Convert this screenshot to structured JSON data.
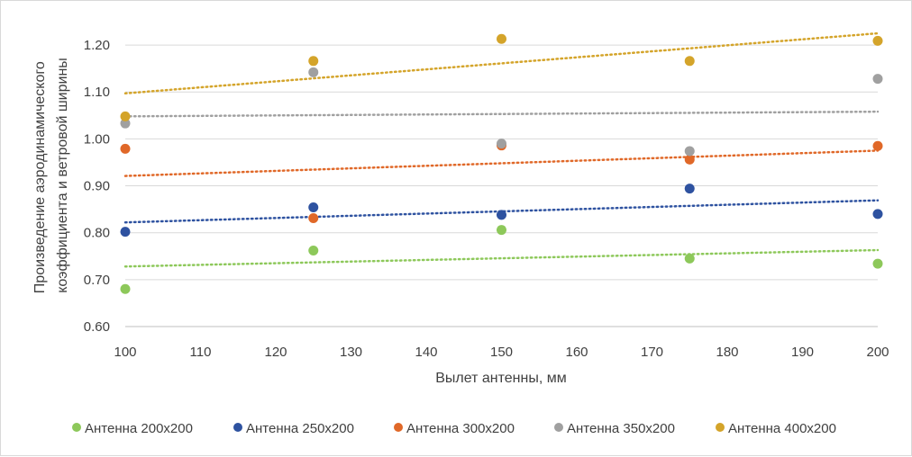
{
  "chart_data": {
    "type": "scatter",
    "title": "",
    "xlabel": "Вылет антенны, мм",
    "ylabel_lines": [
      "Произведение аэродинамического",
      "коэффициента и ветровой ширины"
    ],
    "xlim": [
      100,
      200
    ],
    "ylim": [
      0.6,
      1.25
    ],
    "x_ticks": [
      100,
      110,
      120,
      130,
      140,
      150,
      160,
      170,
      180,
      190,
      200
    ],
    "y_ticks": [
      0.6,
      0.7,
      0.8,
      0.9,
      1.0,
      1.1,
      1.2
    ],
    "y_tick_labels": [
      "0.60",
      "0.70",
      "0.80",
      "0.90",
      "1.00",
      "1.10",
      "1.20"
    ],
    "grid": "horizontal",
    "legend_position": "bottom",
    "trendline": "linear, dotted",
    "series": [
      {
        "name": "Антенна 200x200",
        "color": "#8dc85a",
        "x": [
          100,
          125,
          150,
          175,
          200
        ],
        "y": [
          0.68,
          0.762,
          0.806,
          0.745,
          0.734
        ],
        "trend": [
          0.728,
          0.763
        ]
      },
      {
        "name": "Антенна 250x200",
        "color": "#2e52a0",
        "x": [
          100,
          125,
          150,
          175,
          200
        ],
        "y": [
          0.802,
          0.854,
          0.838,
          0.894,
          0.84
        ],
        "trend": [
          0.822,
          0.869
        ]
      },
      {
        "name": "Антенна 300x200",
        "color": "#e06828",
        "x": [
          100,
          125,
          150,
          175,
          200
        ],
        "y": [
          0.979,
          0.831,
          0.986,
          0.956,
          0.985
        ],
        "trend": [
          0.921,
          0.975
        ]
      },
      {
        "name": "Антенна 350x200",
        "color": "#a0a0a0",
        "x": [
          100,
          125,
          150,
          175,
          200
        ],
        "y": [
          1.033,
          1.142,
          0.99,
          0.974,
          1.128
        ],
        "trend": [
          1.048,
          1.058
        ]
      },
      {
        "name": "Антенна 400x200",
        "color": "#d4a42a",
        "x": [
          100,
          125,
          150,
          175,
          200
        ],
        "y": [
          1.048,
          1.166,
          1.213,
          1.166,
          1.209
        ],
        "trend": [
          1.097,
          1.225
        ]
      }
    ]
  }
}
